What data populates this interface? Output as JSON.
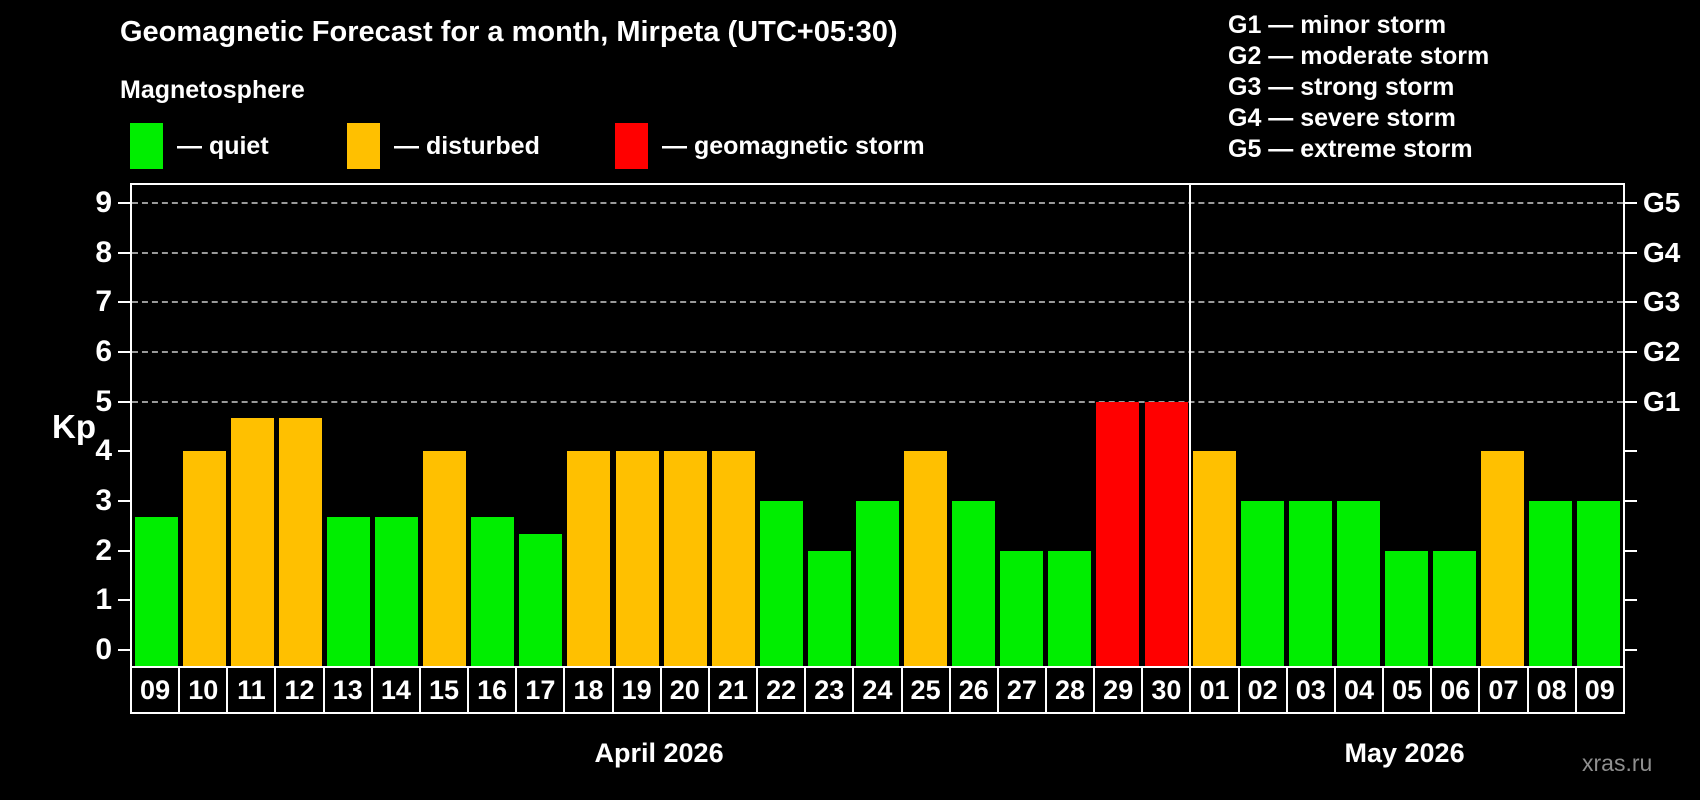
{
  "title": "Geomagnetic Forecast for a month, Mirpeta (UTC+05:30)",
  "subtitle": "Magnetosphere",
  "legend": {
    "items": [
      {
        "key": "quiet",
        "label": "— quiet",
        "color": "#00ee00"
      },
      {
        "key": "disturbed",
        "label": "— disturbed",
        "color": "#ffc000"
      },
      {
        "key": "storm",
        "label": "— geomagnetic storm",
        "color": "#ff0000"
      }
    ]
  },
  "g_scale": [
    "G1 — minor storm",
    "G2 — moderate storm",
    "G3 — strong storm",
    "G4 — severe storm",
    "G5 — extreme storm"
  ],
  "watermark": "xras.ru",
  "chart_data": {
    "type": "bar",
    "title": "Geomagnetic Forecast for a month, Mirpeta (UTC+05:30)",
    "ylabel": "Kp",
    "ylim": [
      0,
      9
    ],
    "yticks": [
      0,
      1,
      2,
      3,
      4,
      5,
      6,
      7,
      8,
      9
    ],
    "grid_levels": [
      5,
      6,
      7,
      8,
      9
    ],
    "grid_color": "#9a9a9a",
    "right_axis": [
      {
        "kp": 5,
        "label": "G1"
      },
      {
        "kp": 6,
        "label": "G2"
      },
      {
        "kp": 7,
        "label": "G3"
      },
      {
        "kp": 8,
        "label": "G4"
      },
      {
        "kp": 9,
        "label": "G5"
      }
    ],
    "legend_position": "top",
    "grid": "dashed horizontal at Kp 5-9 only",
    "months": [
      {
        "label": "April 2026",
        "days": [
          {
            "day": "09",
            "kp": 2.67,
            "status": "quiet"
          },
          {
            "day": "10",
            "kp": 4,
            "status": "disturbed"
          },
          {
            "day": "11",
            "kp": 4.67,
            "status": "disturbed"
          },
          {
            "day": "12",
            "kp": 4.67,
            "status": "disturbed"
          },
          {
            "day": "13",
            "kp": 2.67,
            "status": "quiet"
          },
          {
            "day": "14",
            "kp": 2.67,
            "status": "quiet"
          },
          {
            "day": "15",
            "kp": 4,
            "status": "disturbed"
          },
          {
            "day": "16",
            "kp": 2.67,
            "status": "quiet"
          },
          {
            "day": "17",
            "kp": 2.33,
            "status": "quiet"
          },
          {
            "day": "18",
            "kp": 4,
            "status": "disturbed"
          },
          {
            "day": "19",
            "kp": 4,
            "status": "disturbed"
          },
          {
            "day": "20",
            "kp": 4,
            "status": "disturbed"
          },
          {
            "day": "21",
            "kp": 4,
            "status": "disturbed"
          },
          {
            "day": "22",
            "kp": 3,
            "status": "quiet"
          },
          {
            "day": "23",
            "kp": 2,
            "status": "quiet"
          },
          {
            "day": "24",
            "kp": 3,
            "status": "quiet"
          },
          {
            "day": "25",
            "kp": 4,
            "status": "disturbed"
          },
          {
            "day": "26",
            "kp": 3,
            "status": "quiet"
          },
          {
            "day": "27",
            "kp": 2,
            "status": "quiet"
          },
          {
            "day": "28",
            "kp": 2,
            "status": "quiet"
          },
          {
            "day": "29",
            "kp": 5,
            "status": "storm"
          },
          {
            "day": "30",
            "kp": 5,
            "status": "storm"
          }
        ]
      },
      {
        "label": "May 2026",
        "days": [
          {
            "day": "01",
            "kp": 4,
            "status": "disturbed"
          },
          {
            "day": "02",
            "kp": 3,
            "status": "quiet"
          },
          {
            "day": "03",
            "kp": 3,
            "status": "quiet"
          },
          {
            "day": "04",
            "kp": 3,
            "status": "quiet"
          },
          {
            "day": "05",
            "kp": 2,
            "status": "quiet"
          },
          {
            "day": "06",
            "kp": 2,
            "status": "quiet"
          },
          {
            "day": "07",
            "kp": 4,
            "status": "disturbed"
          },
          {
            "day": "08",
            "kp": 3,
            "status": "quiet"
          },
          {
            "day": "09",
            "kp": 3,
            "status": "quiet"
          }
        ]
      }
    ]
  }
}
